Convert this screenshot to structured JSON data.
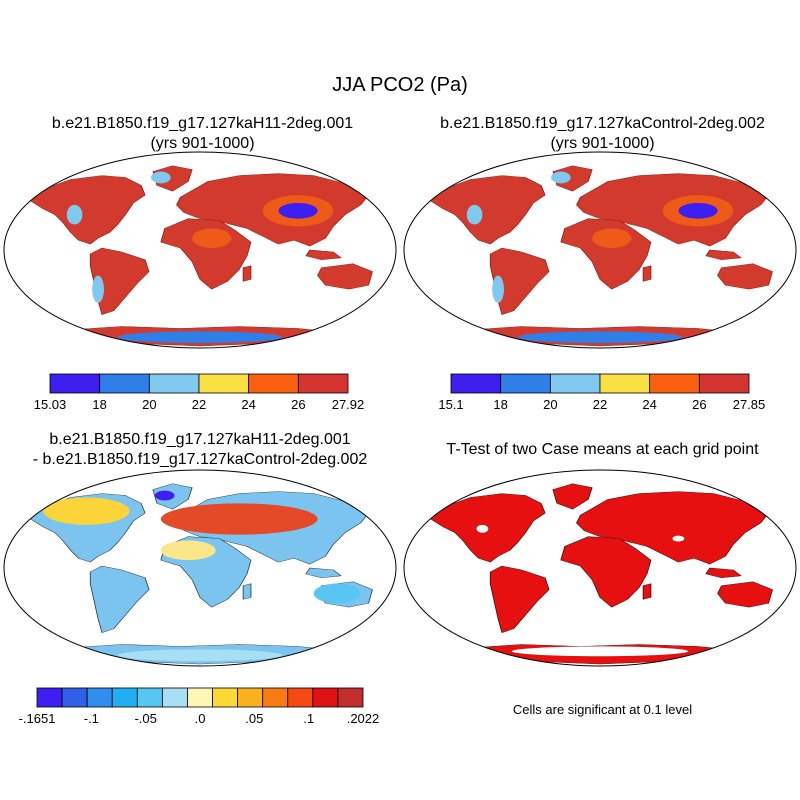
{
  "figure": {
    "title": "JJA PCO2 (Pa)"
  },
  "panels": [
    {
      "id": "case1",
      "title_line1": "b.e21.B1850.f19_g17.127kaH11-2deg.001",
      "title_line2": "(yrs 901-1000)",
      "colorbar": {
        "colors": [
          "#3d1ff0",
          "#2f7fe8",
          "#7fc8f0",
          "#fae043",
          "#fa6010",
          "#d43530"
        ],
        "labels": [
          "15.03",
          "18",
          "20",
          "22",
          "24",
          "26",
          "27.92"
        ]
      }
    },
    {
      "id": "case2",
      "title_line1": "b.e21.B1850.f19_g17.127kaControl-2deg.002",
      "title_line2": "(yrs 901-1000)",
      "colorbar": {
        "colors": [
          "#3d1ff0",
          "#2f7fe8",
          "#7fc8f0",
          "#fae043",
          "#fa6010",
          "#d43530"
        ],
        "labels": [
          "15.1",
          "18",
          "20",
          "22",
          "24",
          "26",
          "27.85"
        ]
      }
    },
    {
      "id": "difference",
      "title_line1": "b.e21.B1850.f19_g17.127kaH11-2deg.001",
      "title_line2": "- b.e21.B1850.f19_g17.127kaControl-2deg.002",
      "colorbar": {
        "colors": [
          "#3d1ff0",
          "#3060e8",
          "#2f8ef0",
          "#22aef2",
          "#57c6f2",
          "#a7dff4",
          "#fff6b5",
          "#fdd835",
          "#fbb01d",
          "#f97b16",
          "#f54a14",
          "#e21212",
          "#c22e2e"
        ],
        "labels": [
          "-.1651",
          "-.1",
          "-.05",
          ".0",
          ".05",
          ".1",
          ".2022"
        ]
      }
    },
    {
      "id": "ttest",
      "title_line1": "T-Test of two Case means at each grid point",
      "note": "Cells are significant at 0.1 level"
    }
  ],
  "colors": {
    "land_high": "#d23a2e",
    "land_orange": "#f05a18",
    "land_low_blue": "#2f7fe8",
    "land_deep_blue": "#3d1ff0",
    "land_light_blue": "#7fc8f0",
    "land_yellow": "#fae043",
    "ttest_red": "#e61010"
  }
}
